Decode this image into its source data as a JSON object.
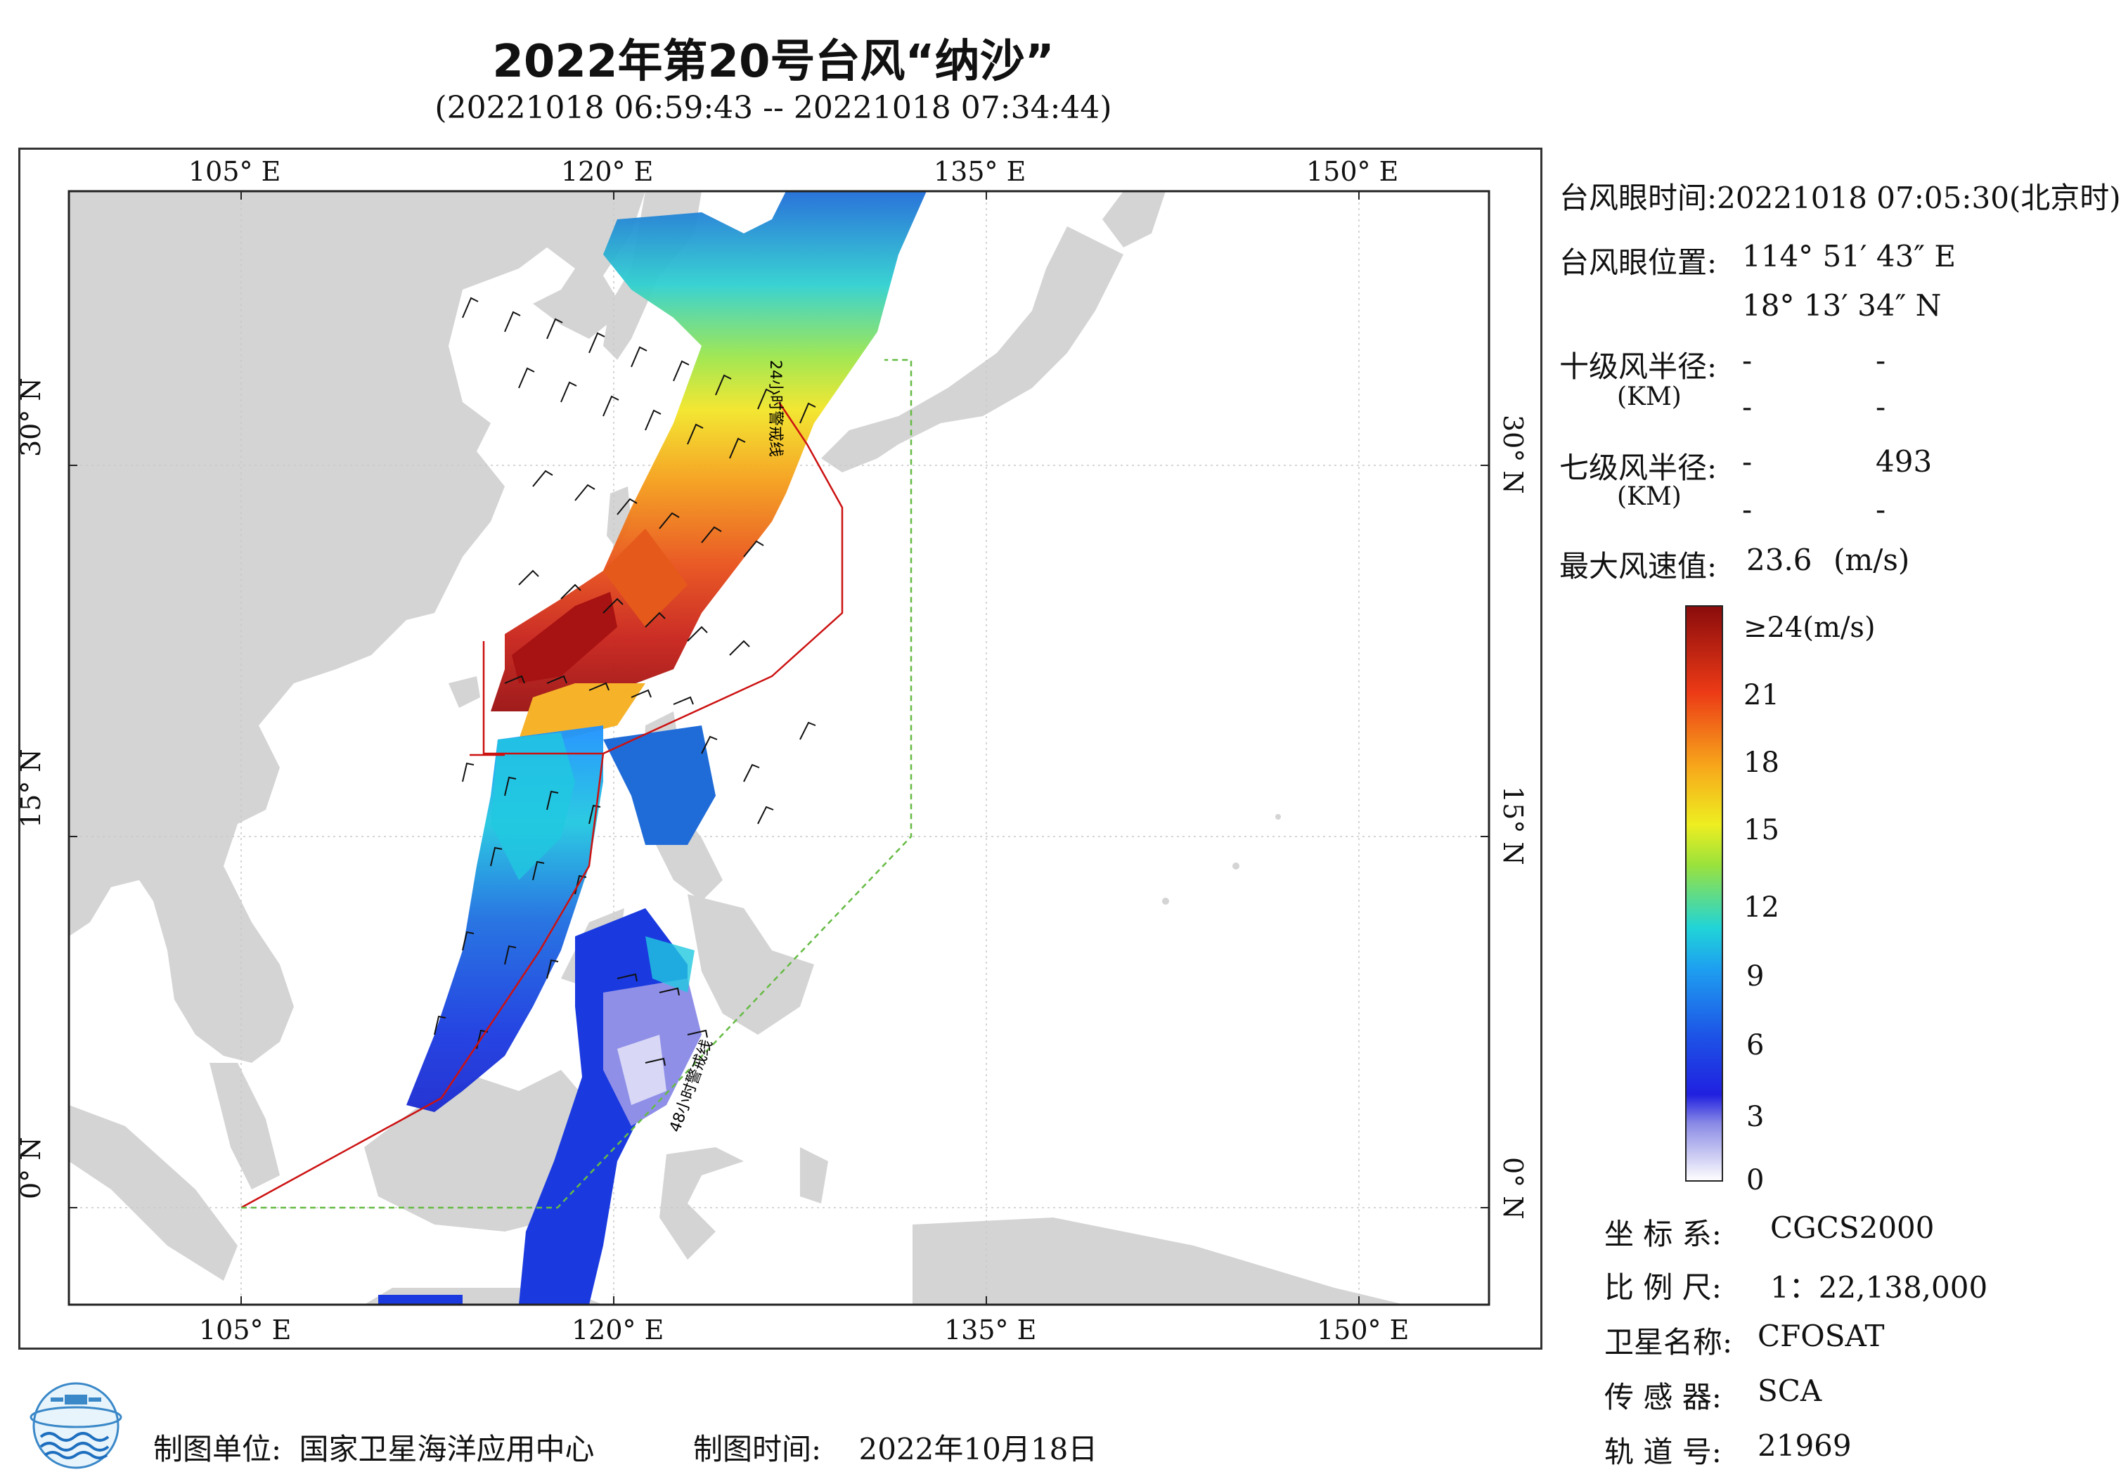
{
  "title": "2022年第20号台风“纳沙”",
  "subtitle": "(20221018 06:59:43 -- 20221018 07:34:44)",
  "map": {
    "lon_labels": [
      "105° E",
      "120° E",
      "135° E",
      "150° E"
    ],
    "lat_labels": [
      "30° N",
      "15° N",
      "0° N"
    ],
    "line_label_24h": "24小时警戒线",
    "line_label_48h": "48小时警戒线",
    "colors": {
      "land": "#d4d4d4",
      "sea": "#ffffff",
      "grid": "#bbbbbb",
      "warning24": "#cc1111",
      "warning48": "#66bb44"
    }
  },
  "info": {
    "eye_time_label": "台风眼时间:",
    "eye_time_value": "20221018 07:05:30(北京时)",
    "eye_pos_label": "台风眼位置:",
    "eye_lon": "114° 51′ 43″ E",
    "eye_lat": "18° 13′ 34″ N",
    "r10_label": "十级风半径:",
    "r10_unit": "(KM)",
    "r10_v1": "-",
    "r10_v2": "-",
    "r10_v3": "-",
    "r10_v4": "-",
    "r7_label": "七级风半径:",
    "r7_unit": "(KM)",
    "r7_v1": "-",
    "r7_v2": "493",
    "r7_v3": "-",
    "r7_v4": "-",
    "max_wind_label": "最大风速值:",
    "max_wind_value": "23.6",
    "max_wind_unit": "(m/s)"
  },
  "colorbar": {
    "labels": [
      "≥24(m/s)",
      "21",
      "18",
      "15",
      "12",
      "9",
      "6",
      "3",
      "0"
    ],
    "values": [
      24,
      21,
      18,
      15,
      12,
      9,
      6,
      3,
      0
    ]
  },
  "meta": {
    "crs_label": "坐 标 系:",
    "crs_value": "CGCS2000",
    "scale_label": "比 例 尺:",
    "scale_value": "1：22,138,000",
    "satellite_label": "卫星名称:",
    "satellite_value": "CFOSAT",
    "sensor_label": "传 感 器:",
    "sensor_value": "SCA",
    "orbit_label": "轨 道 号:",
    "orbit_value": "21969"
  },
  "footer": {
    "org_label": "制图单位:",
    "org_value": "国家卫星海洋应用中心",
    "time_label": "制图时间:",
    "time_value": "2022年10月18日"
  }
}
